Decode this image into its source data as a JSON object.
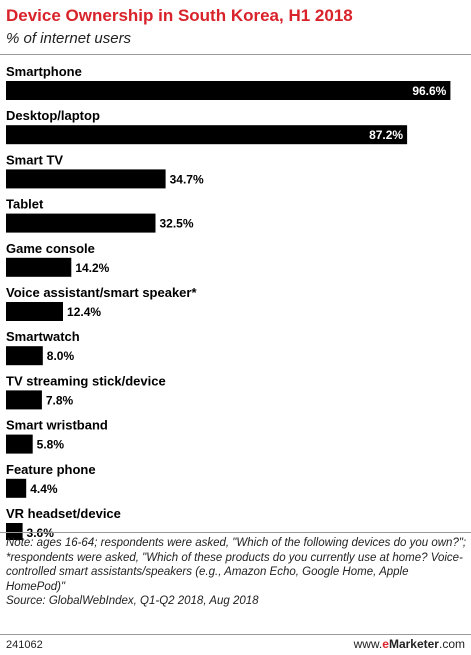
{
  "header": {
    "title": "Device Ownership in South Korea, H1 2018",
    "subtitle": "% of internet users"
  },
  "chart_data": {
    "type": "bar",
    "orientation": "horizontal",
    "title": "Device Ownership in South Korea, H1 2018",
    "subtitle": "% of internet users",
    "categories": [
      "Smartphone",
      "Desktop/laptop",
      "Smart TV",
      "Tablet",
      "Game console",
      "Voice assistant/smart speaker*",
      "Smartwatch",
      "TV streaming stick/device",
      "Smart wristband",
      "Feature phone",
      "VR headset/device"
    ],
    "values": [
      96.6,
      87.2,
      34.7,
      32.5,
      14.2,
      12.4,
      8.0,
      7.8,
      5.8,
      4.4,
      3.6
    ],
    "value_labels": [
      "96.6%",
      "87.2%",
      "34.7%",
      "32.5%",
      "14.2%",
      "12.4%",
      "8.0%",
      "7.8%",
      "5.8%",
      "4.4%",
      "3.6%"
    ],
    "bar_color": "#000000",
    "xlim": [
      0,
      100
    ]
  },
  "footer": {
    "note": "Note: ages 16-64; respondents were asked, \"Which of the following devices do you own?\"; *respondents were asked, \"Which of these products do you currently use at home? Voice-controlled smart assistants/speakers (e.g., Amazon Echo, Google Home, Apple HomePod)\"",
    "source": "Source: GlobalWebIndex, Q1-Q2 2018, Aug 2018",
    "chart_id": "241062",
    "brand_prefix": "www.",
    "brand_accent": "e",
    "brand_name": "Marketer",
    "brand_suffix": ".com"
  },
  "colors": {
    "title": "#d9232b",
    "bars": "#000000",
    "value_text_inside": "#ffffff"
  }
}
